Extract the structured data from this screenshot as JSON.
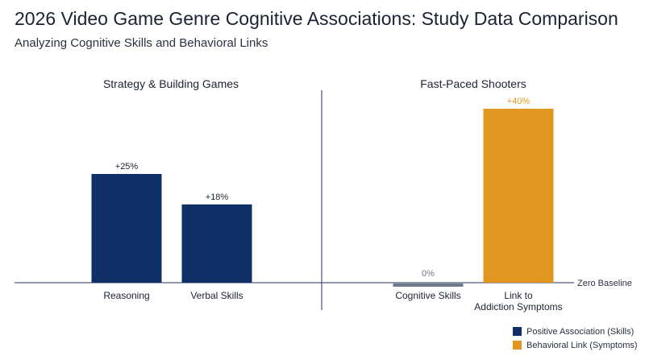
{
  "title": "2026 Video Game Genre Cognitive Associations: Study Data Comparison",
  "subtitle": "Analyzing Cognitive Skills and Behavioral Links",
  "colors": {
    "positive": "#0f2f66",
    "behavioral": "#e0961f",
    "zero": "#6f7a90",
    "axis": "#27365a"
  },
  "legend": [
    {
      "label": "Positive Association (Skills)",
      "color": "#0f2f66"
    },
    {
      "label": "Behavioral Link (Symptoms)",
      "color": "#e0961f"
    }
  ],
  "chart_data": {
    "type": "bar",
    "baseline_label": "Zero Baseline",
    "ylim": [
      0,
      40
    ],
    "panels": [
      {
        "name": "Strategy & Building Games",
        "categories": [
          "Reasoning",
          "Verbal Skills"
        ],
        "values": [
          25,
          18
        ],
        "labels": [
          "+25%",
          "+18%"
        ],
        "series": [
          "Positive Association (Skills)",
          "Positive Association (Skills)"
        ]
      },
      {
        "name": "Fast-Paced Shooters",
        "categories": [
          "Cognitive Skills",
          "Link to Addiction Symptoms"
        ],
        "values": [
          0,
          40
        ],
        "labels": [
          "0%",
          "+40%"
        ],
        "series": [
          "Zero",
          "Behavioral Link (Symptoms)"
        ]
      }
    ]
  }
}
